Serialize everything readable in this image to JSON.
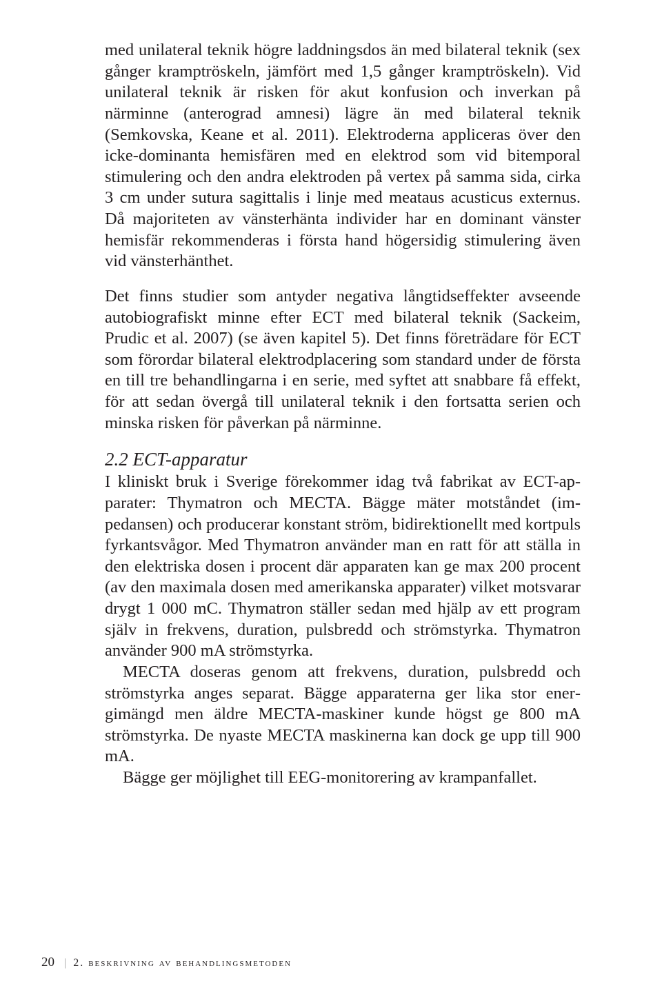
{
  "para1": "med unilateral teknik högre laddningsdos än med bilateral tek­nik (sex gånger kramptröskeln, jämfört med 1,5 gånger kramp­tröskeln). Vid unilateral teknik är risken för akut konfusion och inverkan på närminne (anterograd amnesi) lägre än med bilate­ral teknik (Semkovska, Keane et al. 2011). Elektroderna appli­ceras över den icke-dominanta hemisfären med en elektrod som vid bitemporal stimulering och den andra elektroden på vertex på samma sida, cirka 3 cm under sutura sagittalis i linje med meataus acusticus externus. Då majoriteten av vänsterhänta in­divider har en dominant vänster hemisfär rekommenderas i för­sta hand högersidig stimulering även vid vänsterhänthet.",
  "para2": "Det finns studier som antyder negativa långtidseffekter avseende autobiografiskt minne efter ECT med bilateral teknik (Sackeim, Prudic et al. 2007) (se även kapitel 5). Det finns företrädare för ECT som förordar bilateral elektrodplacering som standard under de första en till tre behandlingarna i en serie, med syftet att snab­bare få effekt, för att sedan övergå till unilateral teknik i den fort­satta serien och minska risken för påverkan på närminne.",
  "heading": "2.2 ECT-apparatur",
  "para3": "I kliniskt bruk i Sverige förekommer idag två fabrikat av ECT-ap­parater: Thymatron och MECTA. Bägge mäter motståndet (im­pedansen) och producerar konstant ström, bidirektionellt med kortpuls fyrkantsvågor. Med Thymatron använder man en ratt för att ställa in den elektriska dosen i procent där apparaten kan ge max 200 procent (av den maximala dosen med amerikanska ap­parater) vilket motsvarar drygt 1 000 mC. Thymatron ställer sedan med hjälp av ett program själv in frekvens, duration, pulsbredd och strömstyrka. Thymatron använder 900 mA strömstyrka.",
  "para4": "MECTA doseras genom att frekvens, duration, pulsbredd och strömstyrka anges separat. Bägge apparaterna ger lika stor ener­gimängd men äldre MECTA-maskiner kunde högst ge 800 mA strömstyrka. De nyaste MECTA maskinerna kan dock ge upp till 900 mA.",
  "para5": "Bägge ger möjlighet till EEG-monitorering av krampanfallet.",
  "footer": {
    "pagenum": "20",
    "chapter": "2. beskrivning av behandlingsmetoden"
  }
}
